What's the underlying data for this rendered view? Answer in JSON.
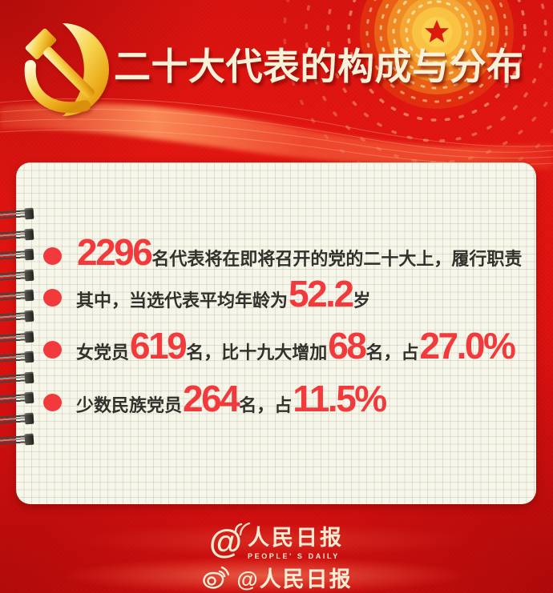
{
  "header": {
    "title": "二十大代表的构成与分布"
  },
  "card": {
    "bullets": [
      {
        "segments": [
          {
            "text": "2296",
            "emph": true
          },
          {
            "text": "名代表将在即将召开的党的二十大上，履行职责",
            "emph": false
          }
        ]
      },
      {
        "segments": [
          {
            "text": "其中，当选代表平均年龄为",
            "emph": false
          },
          {
            "text": "52.2",
            "emph": true
          },
          {
            "text": "岁",
            "emph": false
          }
        ]
      },
      {
        "segments": [
          {
            "text": "女党员",
            "emph": false
          },
          {
            "text": "619",
            "emph": true
          },
          {
            "text": "名，比十九大增加",
            "emph": false
          },
          {
            "text": "68",
            "emph": true
          },
          {
            "text": "名，占",
            "emph": false
          },
          {
            "text": "27.0%",
            "emph": true
          }
        ]
      },
      {
        "segments": [
          {
            "text": "少数民族党员",
            "emph": false
          },
          {
            "text": "264",
            "emph": true
          },
          {
            "text": "名，占",
            "emph": false
          },
          {
            "text": "11.5%",
            "emph": true
          }
        ]
      }
    ]
  },
  "footer": {
    "brand_at": "@",
    "brand_name": "人民日报",
    "brand_sub": "PEOPLE' S DAILY",
    "weibo_handle": "@人民日报"
  },
  "colors": {
    "background_red": "#de1210",
    "number_red": "#f23a3c",
    "title_cream": "#f8f1d9",
    "card_bg": "#f7f6ea",
    "text_dark": "#32312c",
    "emblem_gold": "#f0b11c"
  }
}
